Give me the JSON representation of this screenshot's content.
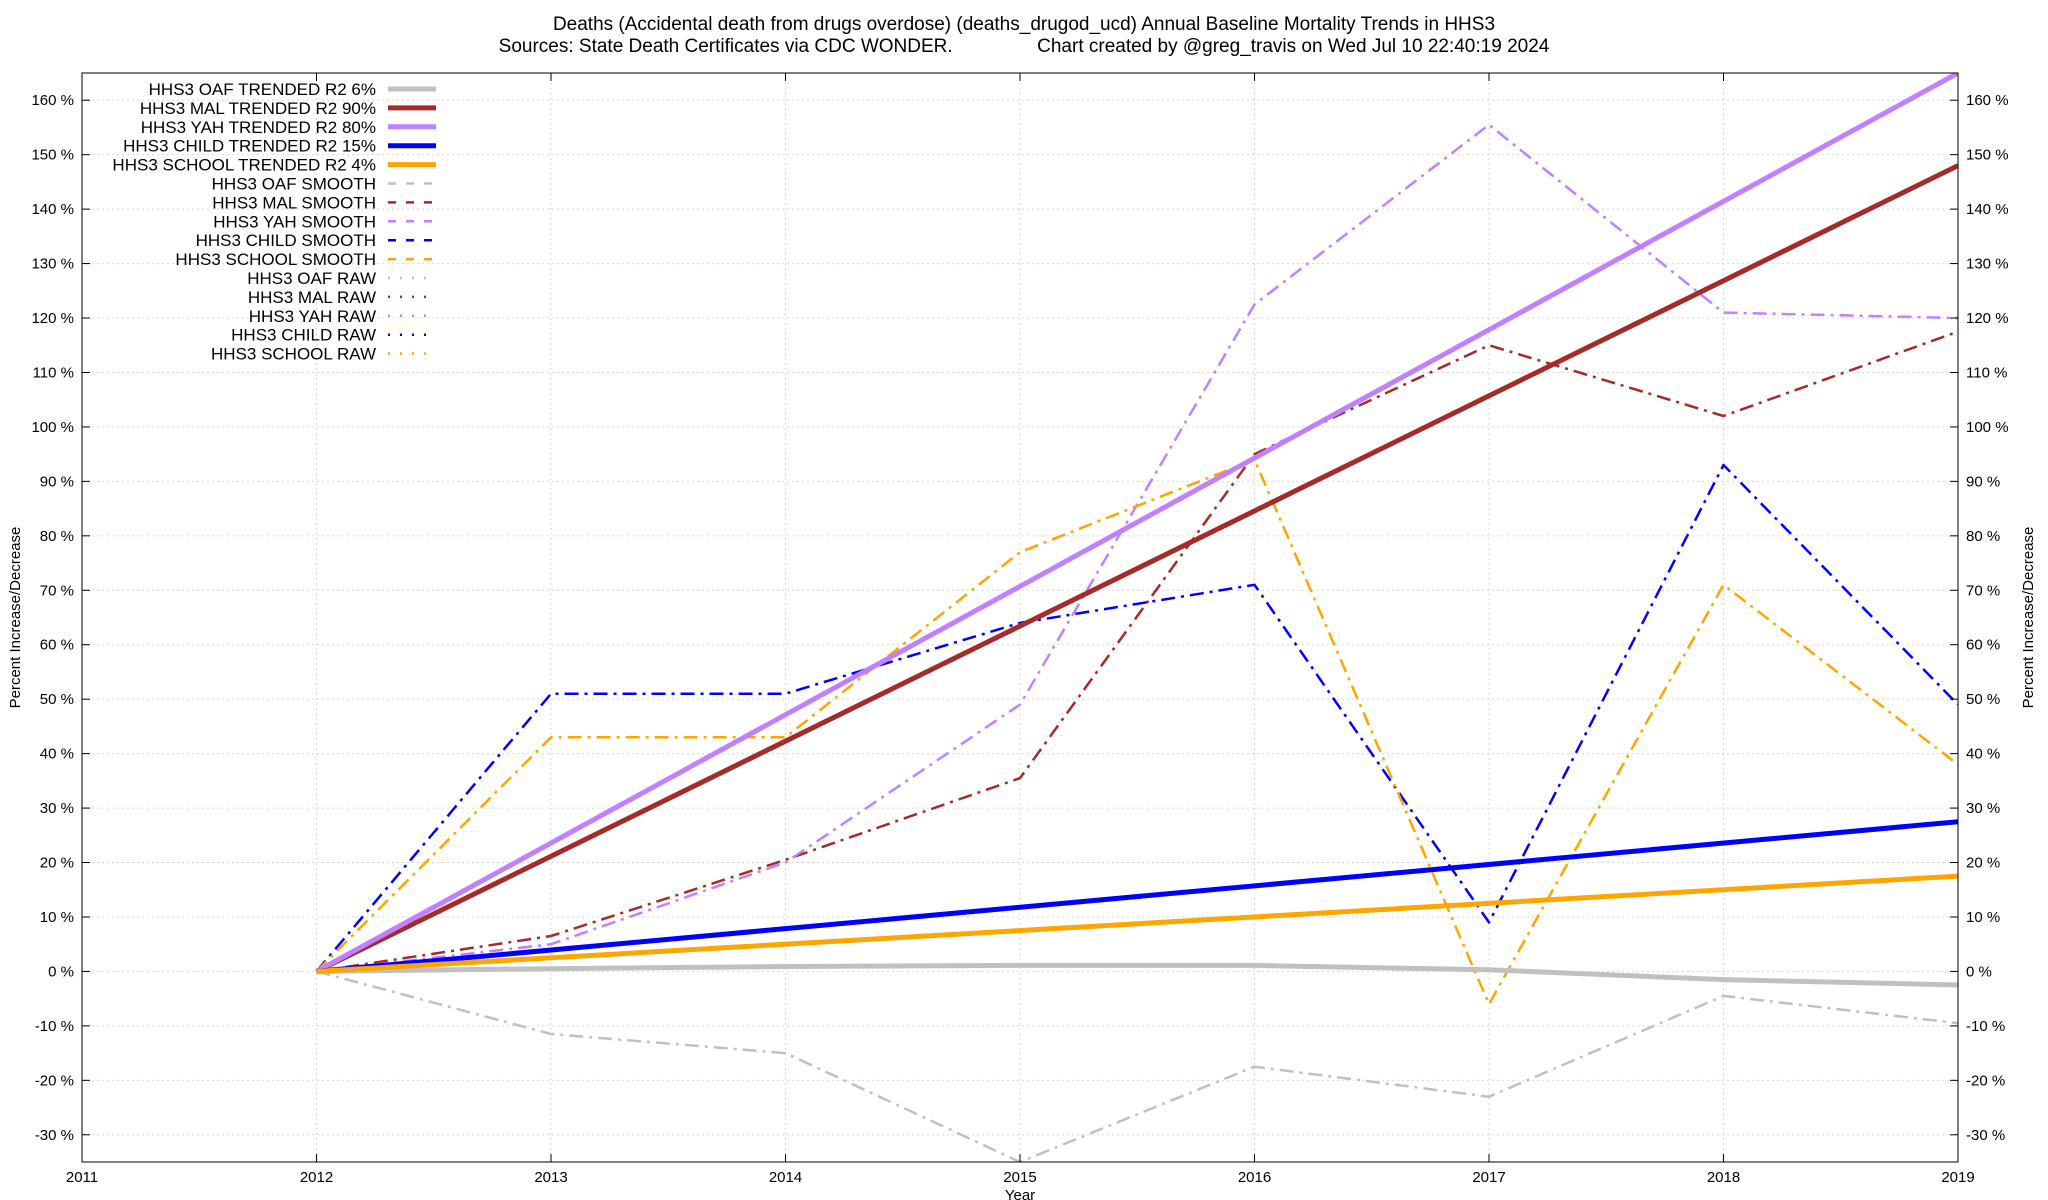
{
  "title_line1": "Deaths (Accidental death from drugs overdose) (deaths_drugod_ucd)  Annual Baseline Mortality Trends in HHS3",
  "title_line2_left": "Sources: State Death Certificates via CDC WONDER.",
  "title_line2_right": "Chart created by @greg_travis on Wed Jul 10 22:40:19 2024",
  "chart_data": {
    "type": "line",
    "xlabel": "Year",
    "ylabel": "Percent Increase/Decrease",
    "y2label": "Percent Increase/Decrease",
    "xlim": [
      2011,
      2019
    ],
    "ylim": [
      -35,
      165
    ],
    "x_ticks": [
      "2011",
      "2012",
      "2013",
      "2014",
      "2015",
      "2016",
      "2017",
      "2018",
      "2019"
    ],
    "y_ticks": [
      "-30 %",
      "-20 %",
      "-10 %",
      "0 %",
      "10 %",
      "20 %",
      "30 %",
      "40 %",
      "50 %",
      "60 %",
      "70 %",
      "80 %",
      "90 %",
      "100 %",
      "110 %",
      "120 %",
      "130 %",
      "140 %",
      "150 %",
      "160 %"
    ],
    "y_tick_values": [
      -30,
      -20,
      -10,
      0,
      10,
      20,
      30,
      40,
      50,
      60,
      70,
      80,
      90,
      100,
      110,
      120,
      130,
      140,
      150,
      160
    ],
    "grid": true,
    "legend_position": "top-left",
    "series": [
      {
        "name": "HHS3 OAF TRENDED R2   6%",
        "style": "trend",
        "color": "#c0c0c0",
        "x": [
          2012,
          2013,
          2014,
          2015,
          2016,
          2017,
          2018,
          2019
        ],
        "values": [
          0,
          0.5,
          0.9,
          1.1,
          1.1,
          0.3,
          -1.5,
          -2.5
        ]
      },
      {
        "name": "HHS3 MAL TRENDED R2  90%",
        "style": "trend",
        "color": "#a52a2a",
        "x": [
          2012,
          2019
        ],
        "values": [
          0,
          148
        ]
      },
      {
        "name": "HHS3 YAH TRENDED R2  80%",
        "style": "trend",
        "color": "#c080ff",
        "x": [
          2012,
          2019
        ],
        "values": [
          0,
          165
        ]
      },
      {
        "name": "HHS3 CHILD TRENDED R2  15%",
        "style": "trend",
        "color": "#0000ff",
        "x": [
          2012,
          2019
        ],
        "values": [
          0,
          27.5
        ]
      },
      {
        "name": "HHS3 SCHOOL TRENDED R2   4%",
        "style": "trend",
        "color": "#ffa500",
        "x": [
          2012,
          2019
        ],
        "values": [
          0,
          17.5
        ]
      },
      {
        "name": "HHS3 OAF SMOOTH",
        "style": "smooth",
        "color": "#c0c0c0",
        "x": [
          2012,
          2013,
          2014,
          2015,
          2016,
          2017,
          2018,
          2019
        ],
        "values": [
          0,
          -11.5,
          -15,
          -35,
          -17.5,
          -23,
          -4.5,
          -9.5
        ]
      },
      {
        "name": "HHS3 MAL SMOOTH",
        "style": "smooth",
        "color": "#a52a2a",
        "x": [
          2012,
          2013,
          2014,
          2015,
          2016,
          2017,
          2018,
          2019
        ],
        "values": [
          0,
          6.5,
          20.5,
          35.5,
          95,
          115,
          102,
          117.5
        ]
      },
      {
        "name": "HHS3 YAH SMOOTH",
        "style": "smooth",
        "color": "#c080ff",
        "x": [
          2012,
          2013,
          2014,
          2015,
          2016,
          2017,
          2018,
          2019
        ],
        "values": [
          0,
          5,
          20,
          49,
          122.5,
          155.5,
          121,
          120
        ]
      },
      {
        "name": "HHS3 CHILD SMOOTH",
        "style": "smooth",
        "color": "#0000ff",
        "x": [
          2012,
          2013,
          2014,
          2015,
          2016,
          2017,
          2018,
          2019
        ],
        "values": [
          0,
          51,
          51,
          64,
          71,
          9,
          93,
          49
        ]
      },
      {
        "name": "HHS3 SCHOOL SMOOTH",
        "style": "smooth",
        "color": "#ffa500",
        "x": [
          2012,
          2013,
          2014,
          2015,
          2016,
          2017,
          2018,
          2019
        ],
        "values": [
          0,
          43,
          43,
          77,
          94,
          -6,
          71,
          38
        ]
      },
      {
        "name": "HHS3 OAF RAW",
        "style": "raw",
        "color": "#c0c0c0",
        "x": [],
        "values": []
      },
      {
        "name": "HHS3 MAL RAW",
        "style": "raw",
        "color": "#a52a2a",
        "x": [],
        "values": []
      },
      {
        "name": "HHS3 YAH RAW",
        "style": "raw",
        "color": "#c080ff",
        "x": [],
        "values": []
      },
      {
        "name": "HHS3 CHILD RAW",
        "style": "raw",
        "color": "#0000ff",
        "x": [],
        "values": []
      },
      {
        "name": "HHS3 SCHOOL RAW",
        "style": "raw",
        "color": "#ffa500",
        "x": [],
        "values": []
      }
    ]
  }
}
